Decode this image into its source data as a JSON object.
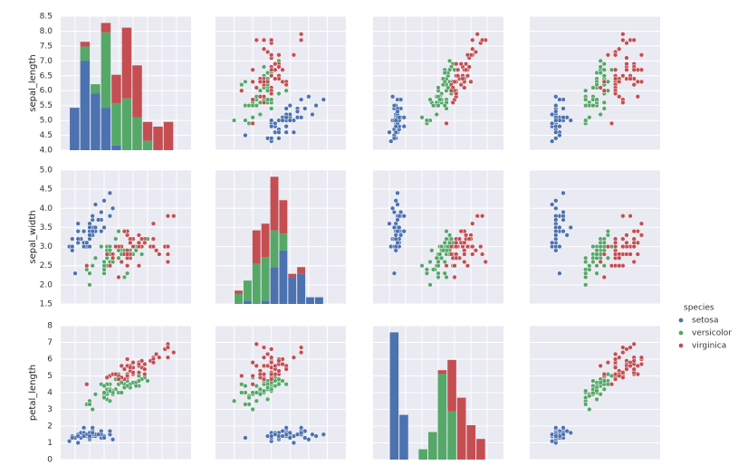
{
  "chart_data": {
    "type": "pairplot",
    "legend_title": "species",
    "variables": [
      {
        "label": "sepal_length",
        "lim": [
          4,
          8.5
        ],
        "ticks": [
          {
            "value": 4,
            "label": "4.0"
          },
          4.5,
          {
            "value": 5,
            "label": "5.0"
          },
          5.5,
          {
            "value": 6,
            "label": "6.0"
          },
          6.5,
          {
            "value": 7,
            "label": "7.0"
          },
          7.5,
          {
            "value": 8,
            "label": "8.0"
          },
          8.5
        ]
      },
      {
        "label": "sepal_width",
        "lim": [
          1.5,
          5
        ],
        "ticks": [
          1.5,
          {
            "value": 2,
            "label": "2.0"
          },
          2.5,
          {
            "value": 3,
            "label": "3.0"
          },
          3.5,
          {
            "value": 4,
            "label": "4.0"
          },
          4.5,
          {
            "value": 5,
            "label": "5.0"
          }
        ]
      },
      {
        "label": "petal_length",
        "lim": [
          0,
          8
        ],
        "ticks": [
          0,
          1,
          2,
          3,
          4,
          5,
          6,
          7,
          8
        ]
      },
      {
        "lim": [
          -0.5,
          3
        ]
      }
    ],
    "series": [
      {
        "name": "setosa",
        "color": "#4c72b0",
        "points": [
          [
            5.1,
            3.5,
            1.4,
            0.2
          ],
          [
            4.9,
            3.0,
            1.4,
            0.2
          ],
          [
            4.7,
            3.2,
            1.3,
            0.2
          ],
          [
            4.6,
            3.1,
            1.5,
            0.2
          ],
          [
            5.0,
            3.6,
            1.4,
            0.2
          ],
          [
            5.4,
            3.9,
            1.7,
            0.4
          ],
          [
            4.6,
            3.4,
            1.4,
            0.3
          ],
          [
            5.0,
            3.4,
            1.5,
            0.2
          ],
          [
            4.4,
            2.9,
            1.4,
            0.2
          ],
          [
            4.9,
            3.1,
            1.5,
            0.1
          ],
          [
            5.4,
            3.7,
            1.5,
            0.2
          ],
          [
            4.8,
            3.4,
            1.6,
            0.2
          ],
          [
            4.8,
            3.0,
            1.4,
            0.1
          ],
          [
            4.3,
            3.0,
            1.1,
            0.1
          ],
          [
            5.8,
            4.0,
            1.2,
            0.2
          ],
          [
            5.7,
            4.4,
            1.5,
            0.4
          ],
          [
            5.4,
            3.9,
            1.3,
            0.4
          ],
          [
            5.1,
            3.5,
            1.4,
            0.3
          ],
          [
            5.7,
            3.8,
            1.7,
            0.3
          ],
          [
            5.1,
            3.8,
            1.5,
            0.3
          ],
          [
            5.4,
            3.4,
            1.7,
            0.2
          ],
          [
            5.1,
            3.7,
            1.5,
            0.4
          ],
          [
            4.6,
            3.6,
            1.0,
            0.2
          ],
          [
            5.1,
            3.3,
            1.7,
            0.5
          ],
          [
            4.8,
            3.4,
            1.9,
            0.2
          ],
          [
            5.0,
            3.0,
            1.6,
            0.2
          ],
          [
            5.0,
            3.4,
            1.6,
            0.4
          ],
          [
            5.2,
            3.5,
            1.5,
            0.2
          ],
          [
            5.2,
            3.4,
            1.4,
            0.2
          ],
          [
            4.7,
            3.2,
            1.6,
            0.2
          ],
          [
            4.8,
            3.1,
            1.6,
            0.2
          ],
          [
            5.4,
            3.4,
            1.5,
            0.4
          ],
          [
            5.2,
            4.1,
            1.5,
            0.1
          ],
          [
            5.5,
            4.2,
            1.4,
            0.2
          ],
          [
            4.9,
            3.1,
            1.5,
            0.1
          ],
          [
            5.0,
            3.2,
            1.2,
            0.2
          ],
          [
            5.5,
            3.5,
            1.3,
            0.2
          ],
          [
            4.9,
            3.1,
            1.5,
            0.1
          ],
          [
            4.4,
            3.0,
            1.3,
            0.2
          ],
          [
            5.1,
            3.4,
            1.5,
            0.2
          ],
          [
            5.0,
            3.5,
            1.3,
            0.3
          ],
          [
            4.5,
            2.3,
            1.3,
            0.3
          ],
          [
            4.4,
            3.2,
            1.3,
            0.2
          ],
          [
            5.0,
            3.5,
            1.6,
            0.6
          ],
          [
            5.1,
            3.8,
            1.9,
            0.4
          ],
          [
            4.8,
            3.0,
            1.4,
            0.3
          ],
          [
            5.1,
            3.8,
            1.6,
            0.2
          ],
          [
            4.6,
            3.2,
            1.4,
            0.2
          ],
          [
            5.3,
            3.7,
            1.5,
            0.2
          ],
          [
            5.0,
            3.3,
            1.4,
            0.2
          ]
        ]
      },
      {
        "name": "versicolor",
        "color": "#55a868",
        "points": [
          [
            7.0,
            3.2,
            4.7,
            1.4
          ],
          [
            6.4,
            3.2,
            4.5,
            1.5
          ],
          [
            6.9,
            3.1,
            4.9,
            1.5
          ],
          [
            5.5,
            2.3,
            4.0,
            1.3
          ],
          [
            6.5,
            2.8,
            4.6,
            1.5
          ],
          [
            5.7,
            2.8,
            4.5,
            1.3
          ],
          [
            6.3,
            3.3,
            4.7,
            1.6
          ],
          [
            4.9,
            2.4,
            3.3,
            1.0
          ],
          [
            6.6,
            2.9,
            4.6,
            1.3
          ],
          [
            5.2,
            2.7,
            3.9,
            1.4
          ],
          [
            5.0,
            2.0,
            3.5,
            1.0
          ],
          [
            5.9,
            3.0,
            4.2,
            1.5
          ],
          [
            6.0,
            2.2,
            4.0,
            1.0
          ],
          [
            6.1,
            2.9,
            4.7,
            1.4
          ],
          [
            5.6,
            2.9,
            3.6,
            1.3
          ],
          [
            6.7,
            3.1,
            4.4,
            1.4
          ],
          [
            5.6,
            3.0,
            4.5,
            1.5
          ],
          [
            5.8,
            2.7,
            4.1,
            1.0
          ],
          [
            6.2,
            2.2,
            4.5,
            1.5
          ],
          [
            5.6,
            2.5,
            3.9,
            1.1
          ],
          [
            5.9,
            3.2,
            4.8,
            1.8
          ],
          [
            6.1,
            2.8,
            4.0,
            1.3
          ],
          [
            6.3,
            2.5,
            4.9,
            1.5
          ],
          [
            6.1,
            2.8,
            4.7,
            1.2
          ],
          [
            6.4,
            2.9,
            4.3,
            1.3
          ],
          [
            6.6,
            3.0,
            4.4,
            1.4
          ],
          [
            6.8,
            2.8,
            4.8,
            1.4
          ],
          [
            6.7,
            3.0,
            5.0,
            1.7
          ],
          [
            6.0,
            2.9,
            4.5,
            1.5
          ],
          [
            5.7,
            2.6,
            3.5,
            1.0
          ],
          [
            5.5,
            2.4,
            3.8,
            1.1
          ],
          [
            5.5,
            2.4,
            3.7,
            1.0
          ],
          [
            5.8,
            2.7,
            3.9,
            1.2
          ],
          [
            6.0,
            2.7,
            5.1,
            1.6
          ],
          [
            5.4,
            3.0,
            4.5,
            1.5
          ],
          [
            6.0,
            3.4,
            4.5,
            1.6
          ],
          [
            6.7,
            3.1,
            4.7,
            1.5
          ],
          [
            6.3,
            2.3,
            4.4,
            1.3
          ],
          [
            5.6,
            3.0,
            4.1,
            1.3
          ],
          [
            5.5,
            2.5,
            4.0,
            1.3
          ],
          [
            5.5,
            2.6,
            4.4,
            1.2
          ],
          [
            6.1,
            3.0,
            4.6,
            1.4
          ],
          [
            5.8,
            2.6,
            4.0,
            1.2
          ],
          [
            5.0,
            2.3,
            3.3,
            1.0
          ],
          [
            5.6,
            2.7,
            4.2,
            1.3
          ],
          [
            5.7,
            3.0,
            4.2,
            1.2
          ],
          [
            5.7,
            2.9,
            4.2,
            1.3
          ],
          [
            6.2,
            2.9,
            4.3,
            1.3
          ],
          [
            5.1,
            2.5,
            3.0,
            1.1
          ],
          [
            5.7,
            2.8,
            4.1,
            1.3
          ]
        ]
      },
      {
        "name": "virginica",
        "color": "#c44e52",
        "points": [
          [
            6.3,
            3.3,
            6.0,
            2.5
          ],
          [
            5.8,
            2.7,
            5.1,
            1.9
          ],
          [
            7.1,
            3.0,
            5.9,
            2.1
          ],
          [
            6.3,
            2.9,
            5.6,
            1.8
          ],
          [
            6.5,
            3.0,
            5.8,
            2.2
          ],
          [
            7.6,
            3.0,
            6.6,
            2.1
          ],
          [
            4.9,
            2.5,
            4.5,
            1.7
          ],
          [
            7.3,
            2.9,
            6.3,
            1.8
          ],
          [
            6.7,
            2.5,
            5.8,
            1.8
          ],
          [
            7.2,
            3.6,
            6.1,
            2.5
          ],
          [
            6.5,
            3.2,
            5.1,
            2.0
          ],
          [
            6.4,
            2.7,
            5.3,
            1.9
          ],
          [
            6.8,
            3.0,
            5.5,
            2.1
          ],
          [
            5.7,
            2.5,
            5.0,
            2.0
          ],
          [
            5.8,
            2.8,
            5.1,
            2.4
          ],
          [
            6.4,
            3.2,
            5.3,
            2.3
          ],
          [
            6.5,
            3.0,
            5.5,
            1.8
          ],
          [
            7.7,
            3.8,
            6.7,
            2.2
          ],
          [
            7.7,
            2.6,
            6.9,
            2.3
          ],
          [
            6.0,
            2.2,
            5.0,
            1.5
          ],
          [
            6.9,
            3.2,
            5.7,
            2.3
          ],
          [
            5.6,
            2.8,
            4.9,
            2.0
          ],
          [
            7.7,
            2.8,
            6.7,
            2.0
          ],
          [
            6.3,
            2.7,
            4.9,
            1.8
          ],
          [
            6.7,
            3.3,
            5.7,
            2.1
          ],
          [
            7.2,
            3.2,
            6.0,
            1.8
          ],
          [
            6.2,
            2.8,
            4.8,
            1.8
          ],
          [
            6.1,
            3.0,
            4.9,
            1.8
          ],
          [
            6.4,
            2.8,
            5.6,
            2.1
          ],
          [
            7.2,
            3.0,
            5.8,
            1.6
          ],
          [
            7.4,
            2.8,
            6.1,
            1.9
          ],
          [
            7.9,
            3.8,
            6.4,
            2.0
          ],
          [
            6.4,
            2.8,
            5.6,
            2.2
          ],
          [
            6.3,
            2.8,
            5.1,
            1.5
          ],
          [
            6.1,
            2.6,
            5.6,
            1.4
          ],
          [
            7.7,
            3.0,
            6.1,
            2.3
          ],
          [
            6.3,
            3.4,
            5.6,
            2.4
          ],
          [
            6.4,
            3.1,
            5.5,
            1.8
          ],
          [
            6.0,
            3.0,
            4.8,
            1.8
          ],
          [
            6.9,
            3.1,
            5.4,
            2.1
          ],
          [
            6.7,
            3.1,
            5.6,
            2.4
          ],
          [
            6.9,
            3.1,
            5.1,
            2.3
          ],
          [
            5.8,
            2.7,
            5.1,
            1.9
          ],
          [
            6.8,
            3.2,
            5.9,
            2.3
          ],
          [
            6.7,
            3.3,
            5.7,
            2.5
          ],
          [
            6.7,
            3.0,
            5.2,
            2.3
          ],
          [
            6.3,
            2.5,
            5.0,
            1.9
          ],
          [
            6.5,
            3.0,
            5.2,
            2.0
          ],
          [
            6.2,
            3.4,
            5.4,
            2.3
          ],
          [
            5.9,
            3.0,
            5.1,
            1.8
          ]
        ]
      }
    ],
    "histograms": [
      {
        "bins": [
          4.3,
          4.66,
          5.02,
          5.38,
          5.74,
          6.1,
          6.46,
          6.82,
          7.18,
          7.54,
          7.9
        ],
        "counts": [
          [
            9,
            19,
            12,
            9,
            1,
            0,
            0,
            0,
            0,
            0
          ],
          [
            0,
            3,
            2,
            16,
            9,
            11,
            7,
            2,
            0,
            0
          ],
          [
            0,
            1,
            0,
            2,
            6,
            15,
            11,
            4,
            5,
            6
          ]
        ]
      },
      {
        "bins": [
          2.0,
          2.24,
          2.48,
          2.72,
          2.96,
          3.2,
          3.44,
          3.68,
          3.92,
          4.16,
          4.4
        ],
        "counts": [
          [
            0,
            1,
            0,
            1,
            11,
            16,
            8,
            9,
            2,
            2
          ],
          [
            3,
            6,
            12,
            13,
            11,
            5,
            0,
            0,
            0,
            0
          ],
          [
            1,
            0,
            10,
            10,
            16,
            10,
            1,
            2,
            0,
            0
          ]
        ]
      },
      {
        "bins": [
          1.0,
          1.59,
          2.18,
          2.77,
          3.36,
          3.95,
          4.54,
          5.13,
          5.72,
          6.31,
          6.9
        ],
        "counts": [
          [
            37,
            13,
            0,
            0,
            0,
            0,
            0,
            0,
            0,
            0
          ],
          [
            0,
            0,
            0,
            3,
            8,
            25,
            14,
            0,
            0,
            0
          ],
          [
            0,
            0,
            0,
            0,
            0,
            1,
            15,
            18,
            10,
            6
          ]
        ]
      }
    ]
  }
}
